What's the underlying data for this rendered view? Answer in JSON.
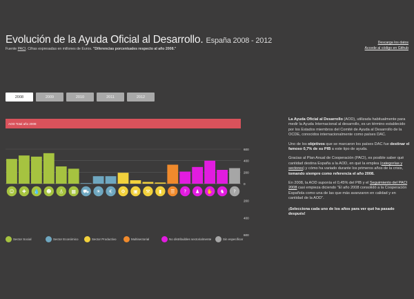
{
  "header": {
    "title": "Evolución de la Ayuda Oficial al Desarrollo.",
    "subtitle": "España 2008 - 2012",
    "source_prefix": "Fuente",
    "source_link": "PACI",
    "source_text": ". Cifras expresadas en millones de Euros.",
    "source_bold": "\"Diferencias porcentuales respecto al año 2008.\""
  },
  "links": {
    "download": "Descarga los datos",
    "github": "Accede al código en Github"
  },
  "years": [
    "2008",
    "2009",
    "2010",
    "2011",
    "2012"
  ],
  "selected_year": "2008",
  "total_bar_label": "AOD Total año 2008",
  "legend": [
    {
      "label": "Sector Social",
      "color": "#a6c340"
    },
    {
      "label": "Sector Económico",
      "color": "#6fa7c0"
    },
    {
      "label": "Sector Productivo",
      "color": "#f2d13c"
    },
    {
      "label": "Multisectorial",
      "color": "#f08a2c"
    },
    {
      "label": "No distribuibles sectorialmente",
      "color": "#e21ce0"
    },
    {
      "label": "Sin especificar",
      "color": "#a6a6a6"
    }
  ],
  "chart_data": {
    "type": "bar",
    "ylim": [
      -600,
      600
    ],
    "yticks": [
      "600",
      "400",
      "200",
      "0",
      "200",
      "400",
      "600"
    ],
    "values": [
      430,
      490,
      470,
      530,
      300,
      260,
      10,
      130,
      130,
      190,
      60,
      30,
      20,
      330,
      210,
      290,
      400,
      240,
      270
    ],
    "categories_colors": [
      "#a6c340",
      "#a6c340",
      "#a6c340",
      "#a6c340",
      "#a6c340",
      "#a6c340",
      "#6fa7c0",
      "#6fa7c0",
      "#6fa7c0",
      "#f2d13c",
      "#f2d13c",
      "#f2d13c",
      "#f2d13c",
      "#f08a2c",
      "#e21ce0",
      "#e21ce0",
      "#e21ce0",
      "#e21ce0",
      "#a6a6a6"
    ]
  },
  "icons": [
    "child-icon",
    "health-icon",
    "water-icon",
    "family-icon",
    "person-icon",
    "building-icon",
    "truck-icon",
    "bulb-icon",
    "money-icon",
    "tractor-icon",
    "factory-icon",
    "tools-icon",
    "mobile-icon",
    "document-icon",
    "help-icon",
    "refugee-icon",
    "hand-icon",
    "cow-icon",
    "question-icon"
  ],
  "sidebar": {
    "p1_bold": "La Ayuda Oficial al Desarrollo",
    "p1_text": " (AOD), utilizada habitualmente para medir la Ayuda Internacional al desarrollo, es un término establecido por los Estados miembros del Comité de Ayuda al Desarrollo de la OCDE, conocidos internacionalmente como países DAC.",
    "p2_pre": "Uno de los ",
    "p2_bold1": "objetivos",
    "p2_mid": " que se marcaron los países DAC fue ",
    "p2_bold2": "destinar el famoso 0,7% de su PIB",
    "p2_post": " a este tipo de ayuda.",
    "p3_pre": "Gracias al Plan Anual de Cooperación (PACI), es posible saber qué cantidad destina España a la AOD, en qué la emplea (",
    "p3_link": "categorías y sectores",
    "p3_mid": ") y cómo ha variado durante los primeros años de la crisis, ",
    "p3_bold": "tomando siempre como referencia el año 2008.",
    "p4_pre": "En 2008, la AOD suponía el 0,45% del PIB y el ",
    "p4_link": "Seguimiento del PACI 2008",
    "p4_post": " casi empieza diciendo \"El año 2008 consolidó a la Cooperación Española como una de las que más avanzaron en calidad y en cantidad de la AOD\".",
    "cta": "¡Selecciona cada uno de los años para ver qué ha pasado después!"
  }
}
